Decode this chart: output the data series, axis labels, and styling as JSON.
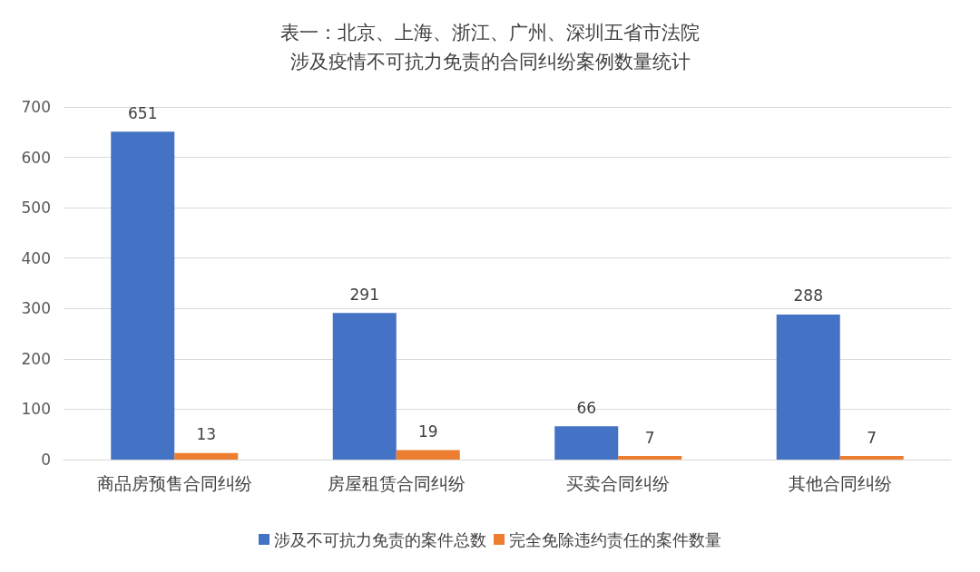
{
  "chart_data": {
    "type": "bar",
    "title": "表一：北京、上海、浙江、广州、深圳五省市法院",
    "subtitle": "涉及疫情不可抗力免责的合同纠纷案例数量统计",
    "categories": [
      "商品房预售合同纠纷",
      "房屋租赁合同纠纷",
      "买卖合同纠纷",
      "其他合同纠纷"
    ],
    "series": [
      {
        "name": "涉及不可抗力免责的案件总数",
        "color": "#4472c4",
        "values": [
          651,
          291,
          66,
          288
        ]
      },
      {
        "name": "完全免除违约责任的案件数量",
        "color": "#ed7d31",
        "values": [
          13,
          19,
          7,
          7
        ]
      }
    ],
    "ylim": [
      0,
      700
    ],
    "yticks": [
      0,
      100,
      200,
      300,
      400,
      500,
      600,
      700
    ],
    "grid": "y",
    "legend": "bottom",
    "data_labels": true
  }
}
